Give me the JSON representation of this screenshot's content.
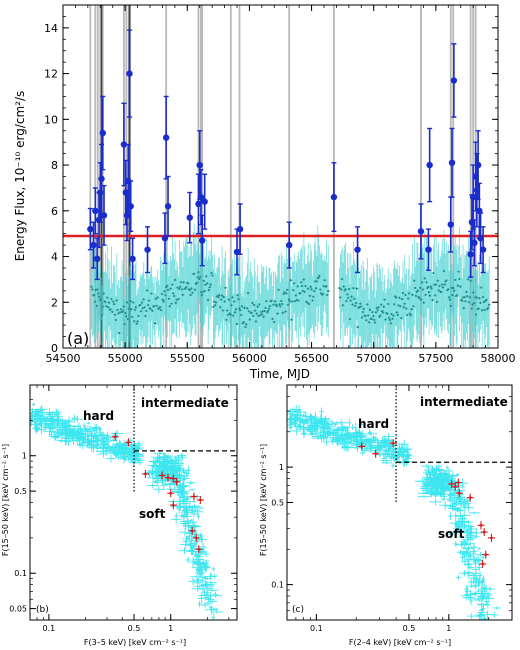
{
  "chart_data": [
    {
      "type": "scatter",
      "panel_label": "(a)",
      "xlabel": "Time, MJD",
      "ylabel": "Energy Flux, 10⁻¹⁰ erg/cm²/s",
      "xlim": [
        54500,
        58000
      ],
      "ylim": [
        0,
        15
      ],
      "xticks": [
        54500,
        55000,
        55500,
        56000,
        56500,
        57000,
        57500,
        58000
      ],
      "yticks": [
        0,
        2,
        4,
        6,
        8,
        10,
        12,
        14
      ],
      "threshold": 4.9,
      "colors": {
        "background_points": "#40d0d0",
        "flare_points": "#1a2ccc",
        "threshold_line": "#e02020",
        "marker_lines": "#b8b8b8",
        "marker_lines_dark": "#444444"
      },
      "marker_lines": [
        54720,
        54760,
        54780,
        54800,
        54820,
        54990,
        55010,
        55030,
        55040,
        55330,
        55590,
        55610,
        55620,
        55850,
        55920,
        56320,
        56680,
        57380,
        57620,
        57640,
        57780,
        57800,
        57820
      ],
      "marker_lines_dark": [
        54810,
        55035
      ],
      "flare_points": [
        {
          "x": 54720,
          "y": 5.2,
          "err": 0.9
        },
        {
          "x": 54745,
          "y": 4.5,
          "err": 1.0
        },
        {
          "x": 54760,
          "y": 6.0,
          "err": 1.0
        },
        {
          "x": 54775,
          "y": 3.9,
          "err": 0.9
        },
        {
          "x": 54790,
          "y": 5.6,
          "err": 1.2
        },
        {
          "x": 54800,
          "y": 6.8,
          "err": 1.3
        },
        {
          "x": 54810,
          "y": 7.4,
          "err": 1.5
        },
        {
          "x": 54820,
          "y": 9.4,
          "err": 1.6
        },
        {
          "x": 54830,
          "y": 5.8,
          "err": 1.3
        },
        {
          "x": 54990,
          "y": 8.9,
          "err": 1.8
        },
        {
          "x": 55005,
          "y": 6.8,
          "err": 1.4
        },
        {
          "x": 55015,
          "y": 5.8,
          "err": 1.1
        },
        {
          "x": 55025,
          "y": 7.3,
          "err": 1.6
        },
        {
          "x": 55035,
          "y": 12.0,
          "err": 1.9
        },
        {
          "x": 55045,
          "y": 6.2,
          "err": 1.1
        },
        {
          "x": 55060,
          "y": 3.9,
          "err": 0.9
        },
        {
          "x": 55180,
          "y": 4.3,
          "err": 1.0
        },
        {
          "x": 55320,
          "y": 4.8,
          "err": 1.1
        },
        {
          "x": 55330,
          "y": 9.2,
          "err": 1.8
        },
        {
          "x": 55345,
          "y": 6.2,
          "err": 1.3
        },
        {
          "x": 55520,
          "y": 5.7,
          "err": 1.1
        },
        {
          "x": 55590,
          "y": 6.3,
          "err": 1.3
        },
        {
          "x": 55600,
          "y": 8.0,
          "err": 1.5
        },
        {
          "x": 55610,
          "y": 6.6,
          "err": 1.2
        },
        {
          "x": 55620,
          "y": 4.7,
          "err": 1.1
        },
        {
          "x": 55640,
          "y": 6.4,
          "err": 1.2
        },
        {
          "x": 55900,
          "y": 4.2,
          "err": 1.0
        },
        {
          "x": 55925,
          "y": 5.2,
          "err": 1.1
        },
        {
          "x": 56320,
          "y": 4.5,
          "err": 1.0
        },
        {
          "x": 56680,
          "y": 6.6,
          "err": 1.5
        },
        {
          "x": 56870,
          "y": 4.3,
          "err": 1.0
        },
        {
          "x": 57380,
          "y": 5.1,
          "err": 1.2
        },
        {
          "x": 57440,
          "y": 4.3,
          "err": 0.9
        },
        {
          "x": 57450,
          "y": 8.0,
          "err": 1.6
        },
        {
          "x": 57620,
          "y": 5.4,
          "err": 1.2
        },
        {
          "x": 57630,
          "y": 8.1,
          "err": 1.5
        },
        {
          "x": 57645,
          "y": 11.7,
          "err": 1.6
        },
        {
          "x": 57780,
          "y": 4.1,
          "err": 1.0
        },
        {
          "x": 57790,
          "y": 5.5,
          "err": 1.2
        },
        {
          "x": 57800,
          "y": 6.6,
          "err": 1.4
        },
        {
          "x": 57810,
          "y": 4.6,
          "err": 1.0
        },
        {
          "x": 57820,
          "y": 7.5,
          "err": 1.5
        },
        {
          "x": 57830,
          "y": 6.9,
          "err": 1.6
        },
        {
          "x": 57840,
          "y": 8.0,
          "err": 1.5
        },
        {
          "x": 57850,
          "y": 6.0,
          "err": 1.2
        },
        {
          "x": 57860,
          "y": 4.8,
          "err": 1.1
        },
        {
          "x": 57880,
          "y": 4.3,
          "err": 1.0
        }
      ]
    },
    {
      "type": "scatter",
      "panel_label": "(b)",
      "xlabel": "F(3–5 keV) [keV cm⁻² s⁻¹]",
      "ylabel": "F(15–50 keV) [keV cm⁻² s⁻¹]",
      "xscale": "log",
      "yscale": "log",
      "xlim": [
        0.07,
        3.5
      ],
      "ylim": [
        0.04,
        4.0
      ],
      "xticks": [
        0.1,
        0.5,
        1
      ],
      "xticklabels": [
        "0.1",
        "0.5",
        "1"
      ],
      "yticks": [
        0.05,
        0.1,
        0.5,
        1
      ],
      "yticklabels": [
        "0.05",
        "0.1",
        "0.5",
        "1"
      ],
      "dashed_y": 1.1,
      "dotted_x": 0.5,
      "region_labels": {
        "hard": "hard",
        "intermediate": "intermediate",
        "soft": "soft"
      },
      "red_points": [
        {
          "x": 0.35,
          "y": 1.45
        },
        {
          "x": 0.45,
          "y": 1.3
        },
        {
          "x": 0.62,
          "y": 0.7
        },
        {
          "x": 0.85,
          "y": 0.68
        },
        {
          "x": 0.95,
          "y": 0.65
        },
        {
          "x": 1.05,
          "y": 0.64
        },
        {
          "x": 1.12,
          "y": 0.6
        },
        {
          "x": 1.0,
          "y": 0.48
        },
        {
          "x": 1.05,
          "y": 0.38
        },
        {
          "x": 1.55,
          "y": 0.45
        },
        {
          "x": 1.75,
          "y": 0.42
        },
        {
          "x": 1.5,
          "y": 0.23
        },
        {
          "x": 1.62,
          "y": 0.2
        },
        {
          "x": 1.7,
          "y": 0.16
        }
      ]
    },
    {
      "type": "scatter",
      "panel_label": "(c)",
      "xlabel": "F(2–4 keV) [keV cm⁻² s⁻¹]",
      "ylabel": "F(15–50 keV) [keV cm⁻² s⁻¹]",
      "xscale": "log",
      "yscale": "log",
      "xlim": [
        0.06,
        3.0
      ],
      "ylim": [
        0.05,
        5.0
      ],
      "xticks": [
        0.1,
        0.5,
        1
      ],
      "xticklabels": [
        "0.1",
        "0.5",
        "1"
      ],
      "yticks": [
        0.1,
        0.5,
        1
      ],
      "yticklabels": [
        "0.1",
        "0.5",
        "1"
      ],
      "dashed_y": 1.1,
      "dotted_x": 0.4,
      "region_labels": {
        "hard": "hard",
        "intermediate": "intermediate",
        "soft": "soft"
      },
      "red_points": [
        {
          "x": 0.22,
          "y": 1.5
        },
        {
          "x": 0.28,
          "y": 1.3
        },
        {
          "x": 0.38,
          "y": 1.6
        },
        {
          "x": 1.05,
          "y": 0.72
        },
        {
          "x": 1.12,
          "y": 0.68
        },
        {
          "x": 1.18,
          "y": 0.74
        },
        {
          "x": 1.2,
          "y": 0.6
        },
        {
          "x": 1.45,
          "y": 0.55
        },
        {
          "x": 1.75,
          "y": 0.32
        },
        {
          "x": 1.85,
          "y": 0.28
        },
        {
          "x": 2.1,
          "y": 0.25
        },
        {
          "x": 1.9,
          "y": 0.18
        },
        {
          "x": 1.8,
          "y": 0.15
        }
      ]
    }
  ]
}
